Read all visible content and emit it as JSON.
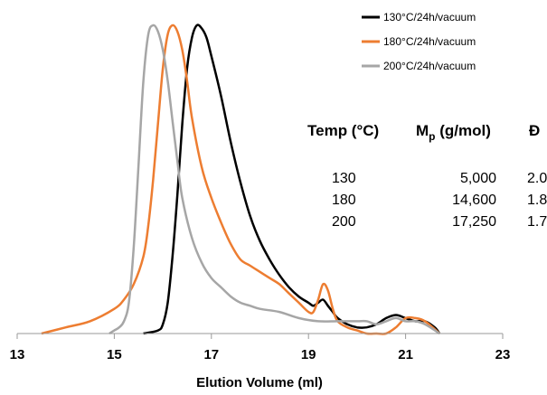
{
  "chart_data": {
    "type": "line",
    "title": "",
    "xlabel": "Elution Volume (ml)",
    "ylabel": "",
    "xlim": [
      13,
      23
    ],
    "ylim": [
      0,
      1
    ],
    "x_ticks": [
      "13",
      "15",
      "17",
      "19",
      "21",
      "23"
    ],
    "grid": false,
    "legend_position": "top-right",
    "series": [
      {
        "name": "130°C/24h/vacuum",
        "color": "#000000",
        "x": [
          15.6,
          15.9,
          16.0,
          16.1,
          16.2,
          16.3,
          16.4,
          16.5,
          16.6,
          16.7,
          16.8,
          16.9,
          17.0,
          17.2,
          17.4,
          17.6,
          17.8,
          18.0,
          18.2,
          18.4,
          18.6,
          18.8,
          19.0,
          19.1,
          19.2,
          19.3,
          19.4,
          19.5,
          19.6,
          19.8,
          20.0,
          20.2,
          20.4,
          20.6,
          20.8,
          21.0,
          21.2,
          21.4,
          21.6,
          21.7
        ],
        "y": [
          0.0,
          0.01,
          0.03,
          0.1,
          0.25,
          0.45,
          0.68,
          0.86,
          0.96,
          1.0,
          0.99,
          0.96,
          0.9,
          0.77,
          0.62,
          0.49,
          0.38,
          0.3,
          0.24,
          0.19,
          0.15,
          0.12,
          0.1,
          0.09,
          0.1,
          0.11,
          0.09,
          0.07,
          0.05,
          0.03,
          0.02,
          0.02,
          0.03,
          0.05,
          0.06,
          0.05,
          0.04,
          0.04,
          0.02,
          0.0
        ]
      },
      {
        "name": "180°C/24h/vacuum",
        "color": "#ed7d31",
        "x": [
          13.5,
          14.0,
          14.5,
          15.0,
          15.2,
          15.4,
          15.6,
          15.7,
          15.8,
          15.9,
          16.0,
          16.1,
          16.2,
          16.3,
          16.4,
          16.5,
          16.6,
          16.8,
          17.0,
          17.2,
          17.4,
          17.6,
          17.8,
          18.0,
          18.2,
          18.4,
          18.6,
          18.8,
          19.0,
          19.1,
          19.2,
          19.3,
          19.4,
          19.5,
          19.6,
          19.8,
          20.0,
          20.2,
          20.4,
          20.6,
          20.8,
          21.0,
          21.2,
          21.4,
          21.7
        ],
        "y": [
          0.0,
          0.02,
          0.04,
          0.08,
          0.11,
          0.16,
          0.25,
          0.35,
          0.5,
          0.68,
          0.86,
          0.97,
          1.0,
          0.98,
          0.92,
          0.82,
          0.7,
          0.54,
          0.44,
          0.36,
          0.29,
          0.24,
          0.22,
          0.2,
          0.18,
          0.16,
          0.13,
          0.1,
          0.07,
          0.07,
          0.11,
          0.16,
          0.14,
          0.08,
          0.04,
          0.02,
          0.01,
          0.0,
          0.0,
          0.0,
          0.02,
          0.05,
          0.05,
          0.04,
          0.0
        ]
      },
      {
        "name": "200°C/24h/vacuum",
        "color": "#a6a6a6",
        "x": [
          14.9,
          15.0,
          15.1,
          15.2,
          15.3,
          15.4,
          15.5,
          15.6,
          15.7,
          15.8,
          15.9,
          16.0,
          16.1,
          16.2,
          16.3,
          16.4,
          16.6,
          16.8,
          17.0,
          17.2,
          17.4,
          17.6,
          17.8,
          18.0,
          18.4,
          18.8,
          19.2,
          19.6,
          20.0,
          20.2,
          20.4,
          20.6,
          20.8,
          21.0,
          21.2,
          21.4,
          21.7
        ],
        "y": [
          0.0,
          0.01,
          0.02,
          0.04,
          0.1,
          0.28,
          0.55,
          0.82,
          0.97,
          1.0,
          0.98,
          0.92,
          0.82,
          0.69,
          0.56,
          0.44,
          0.31,
          0.23,
          0.18,
          0.15,
          0.12,
          0.1,
          0.09,
          0.08,
          0.07,
          0.05,
          0.04,
          0.04,
          0.04,
          0.04,
          0.03,
          0.04,
          0.05,
          0.04,
          0.04,
          0.03,
          0.0
        ]
      }
    ],
    "table": {
      "headers": [
        "Temp (°C)",
        "M",
        "p",
        " (g/mol)",
        "Đ"
      ],
      "rows": [
        [
          "130",
          "5,000",
          "2.0"
        ],
        [
          "180",
          "14,600",
          "1.8"
        ],
        [
          "200",
          "17,250",
          "1.7"
        ]
      ]
    }
  }
}
